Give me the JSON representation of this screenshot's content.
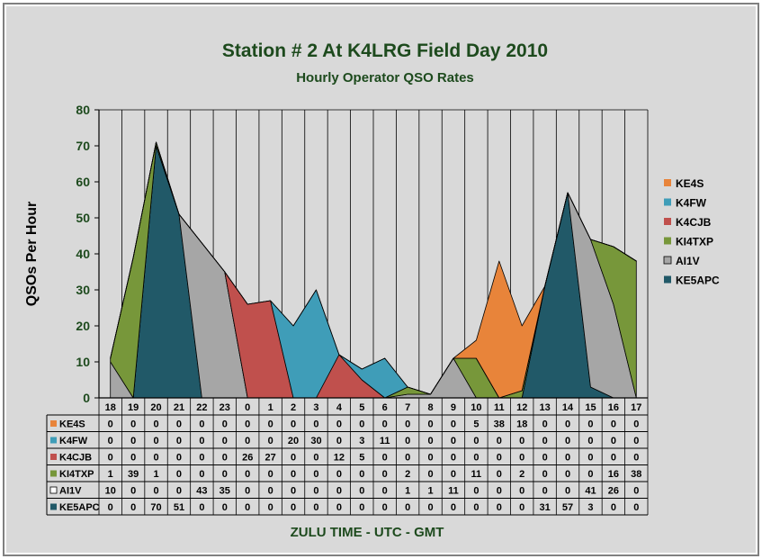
{
  "chart_data": {
    "type": "area",
    "stacked": true,
    "title": "Station # 2 At K4LRG Field Day 2010",
    "subtitle": "Hourly Operator QSO Rates",
    "xlabel": "ZULU TIME  -  UTC  -  GMT",
    "ylabel": "QSOs Per Hour",
    "ylim": [
      0,
      80
    ],
    "yticks": [
      0,
      10,
      20,
      30,
      40,
      50,
      60,
      70,
      80
    ],
    "grid": "vertical",
    "legend": "right",
    "categories": [
      "18",
      "19",
      "20",
      "21",
      "22",
      "23",
      "0",
      "1",
      "2",
      "3",
      "4",
      "5",
      "6",
      "7",
      "8",
      "9",
      "10",
      "11",
      "12",
      "13",
      "14",
      "15",
      "16",
      "17"
    ],
    "series": [
      {
        "name": "KE4S",
        "color": "#E8843A",
        "values": [
          0,
          0,
          0,
          0,
          0,
          0,
          0,
          0,
          0,
          0,
          0,
          0,
          0,
          0,
          0,
          0,
          5,
          38,
          18,
          0,
          0,
          0,
          0,
          0
        ]
      },
      {
        "name": "K4FW",
        "color": "#3F9DB8",
        "values": [
          0,
          0,
          0,
          0,
          0,
          0,
          0,
          0,
          20,
          30,
          0,
          3,
          11,
          0,
          0,
          0,
          0,
          0,
          0,
          0,
          0,
          0,
          0,
          0
        ]
      },
      {
        "name": "K4CJB",
        "color": "#C0504D",
        "values": [
          0,
          0,
          0,
          0,
          0,
          0,
          26,
          27,
          0,
          0,
          12,
          5,
          0,
          0,
          0,
          0,
          0,
          0,
          0,
          0,
          0,
          0,
          0,
          0
        ]
      },
      {
        "name": "KI4TXP",
        "color": "#77973A",
        "values": [
          1,
          39,
          1,
          0,
          0,
          0,
          0,
          0,
          0,
          0,
          0,
          0,
          0,
          2,
          0,
          0,
          11,
          0,
          2,
          0,
          0,
          0,
          16,
          38
        ]
      },
      {
        "name": "AI1V",
        "color": "#A6A6A6",
        "values": [
          10,
          0,
          0,
          0,
          43,
          35,
          0,
          0,
          0,
          0,
          0,
          0,
          0,
          1,
          1,
          11,
          0,
          0,
          0,
          0,
          0,
          41,
          26,
          0
        ]
      },
      {
        "name": "KE5APC",
        "color": "#215968",
        "values": [
          0,
          0,
          70,
          51,
          0,
          0,
          0,
          0,
          0,
          0,
          0,
          0,
          0,
          0,
          0,
          0,
          0,
          0,
          0,
          31,
          57,
          3,
          0,
          0
        ]
      }
    ]
  }
}
